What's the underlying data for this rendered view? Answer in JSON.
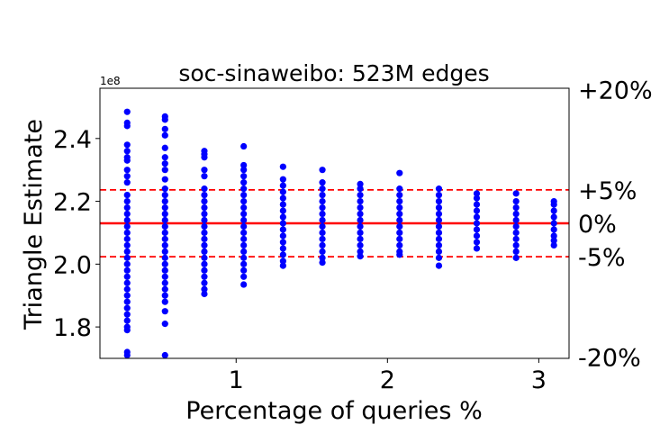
{
  "chart_data": {
    "type": "scatter",
    "title": "soc-sinaweibo: 523M edges",
    "xlabel": "Percentage of queries %",
    "ylabel": "Triangle Estimate",
    "y_offset_label": "1e8",
    "xlim": [
      0.1,
      3.2
    ],
    "ylim": [
      1.7,
      2.56
    ],
    "x_ticks": [
      1,
      2,
      3
    ],
    "x_tick_labels": [
      "1",
      "2",
      "3"
    ],
    "y_ticks": [
      1.8,
      2.0,
      2.2,
      2.4
    ],
    "y_tick_labels": [
      "1.8",
      "2.0",
      "2.2",
      "2.4"
    ],
    "grid": false,
    "true_value": 2.13,
    "reference_lines": [
      {
        "label": "+20%",
        "value": 2.556,
        "style": "none"
      },
      {
        "label": "+5%",
        "value": 2.2365,
        "style": "dashed"
      },
      {
        "label": "0%",
        "value": 2.13,
        "style": "solid"
      },
      {
        "label": "-5%",
        "value": 2.0235,
        "style": "dashed"
      },
      {
        "label": "-20%",
        "value": 1.704,
        "style": "none"
      }
    ],
    "colors": {
      "points": "#0000ff",
      "reference": "#ff0000"
    },
    "series": [
      {
        "x": 0.28,
        "values": [
          2.485,
          2.45,
          2.44,
          2.38,
          2.36,
          2.34,
          2.33,
          2.3,
          2.28,
          2.26,
          2.22,
          2.2,
          2.18,
          2.16,
          2.14,
          2.12,
          2.1,
          2.08,
          2.06,
          2.04,
          2.02,
          2.0,
          1.98,
          1.96,
          1.94,
          1.92,
          1.9,
          1.88,
          1.86,
          1.84,
          1.82,
          1.8,
          1.79,
          1.72,
          1.71
        ]
      },
      {
        "x": 0.53,
        "values": [
          2.47,
          2.46,
          2.43,
          2.41,
          2.37,
          2.34,
          2.32,
          2.3,
          2.27,
          2.24,
          2.22,
          2.2,
          2.18,
          2.16,
          2.14,
          2.12,
          2.1,
          2.08,
          2.06,
          2.04,
          2.02,
          2.0,
          1.98,
          1.96,
          1.94,
          1.92,
          1.9,
          1.88,
          1.85,
          1.81,
          1.71
        ]
      },
      {
        "x": 0.79,
        "values": [
          2.36,
          2.35,
          2.34,
          2.3,
          2.28,
          2.24,
          2.22,
          2.2,
          2.18,
          2.16,
          2.14,
          2.12,
          2.1,
          2.08,
          2.06,
          2.04,
          2.02,
          2.0,
          1.98,
          1.96,
          1.94,
          1.92,
          1.905
        ]
      },
      {
        "x": 1.05,
        "values": [
          2.375,
          2.315,
          2.3,
          2.28,
          2.26,
          2.24,
          2.22,
          2.2,
          2.18,
          2.16,
          2.14,
          2.12,
          2.1,
          2.08,
          2.06,
          2.04,
          2.02,
          2.0,
          1.98,
          1.96,
          1.935
        ]
      },
      {
        "x": 1.31,
        "values": [
          2.31,
          2.27,
          2.25,
          2.23,
          2.21,
          2.19,
          2.17,
          2.15,
          2.13,
          2.11,
          2.09,
          2.07,
          2.05,
          2.03,
          2.01,
          1.995
        ]
      },
      {
        "x": 1.57,
        "values": [
          2.3,
          2.26,
          2.24,
          2.22,
          2.2,
          2.18,
          2.16,
          2.14,
          2.12,
          2.1,
          2.08,
          2.06,
          2.04,
          2.02,
          2.005
        ]
      },
      {
        "x": 1.82,
        "values": [
          2.255,
          2.24,
          2.22,
          2.2,
          2.18,
          2.16,
          2.14,
          2.12,
          2.1,
          2.08,
          2.06,
          2.04,
          2.025
        ]
      },
      {
        "x": 2.08,
        "values": [
          2.29,
          2.24,
          2.22,
          2.2,
          2.18,
          2.16,
          2.14,
          2.12,
          2.1,
          2.08,
          2.06,
          2.04,
          2.03
        ]
      },
      {
        "x": 2.34,
        "values": [
          2.24,
          2.22,
          2.2,
          2.18,
          2.16,
          2.14,
          2.12,
          2.1,
          2.08,
          2.06,
          2.04,
          2.02,
          1.995
        ]
      },
      {
        "x": 2.59,
        "values": [
          2.225,
          2.21,
          2.19,
          2.17,
          2.15,
          2.13,
          2.11,
          2.09,
          2.07,
          2.05
        ]
      },
      {
        "x": 2.85,
        "values": [
          2.225,
          2.2,
          2.18,
          2.16,
          2.14,
          2.12,
          2.1,
          2.08,
          2.06,
          2.04,
          2.02
        ]
      },
      {
        "x": 3.1,
        "values": [
          2.2,
          2.19,
          2.17,
          2.15,
          2.13,
          2.11,
          2.09,
          2.075,
          2.06
        ]
      }
    ]
  }
}
